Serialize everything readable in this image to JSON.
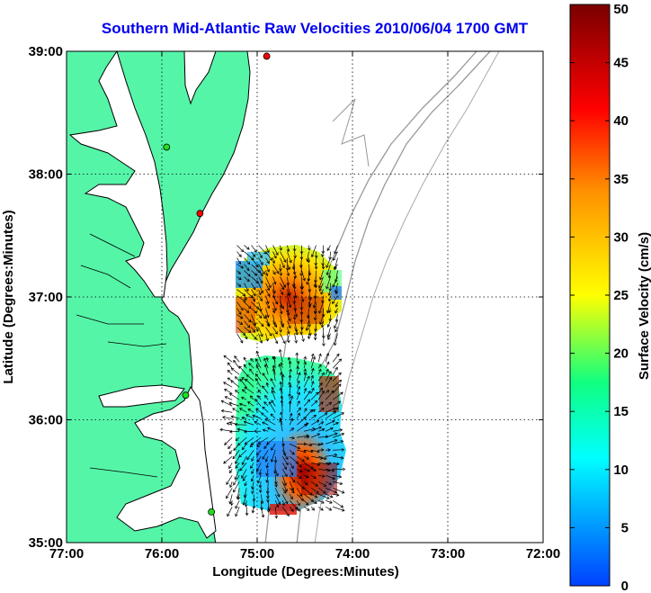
{
  "chart_data": {
    "type": "heatmap",
    "title": "Southern Mid-Atlantic Raw Velocities 2010/06/04 1700 GMT",
    "xlabel": "Longitude (Degrees:Minutes)",
    "ylabel": "Latitude (Degrees:Minutes)",
    "xlim": [
      -77,
      -72
    ],
    "ylim": [
      35,
      39
    ],
    "x_ticks": [
      {
        "value": -77,
        "label": "77:00"
      },
      {
        "value": -76,
        "label": "76:00"
      },
      {
        "value": -75,
        "label": "75:00"
      },
      {
        "value": -74,
        "label": "74:00"
      },
      {
        "value": -73,
        "label": "73:00"
      },
      {
        "value": -72,
        "label": "72:00"
      }
    ],
    "y_ticks": [
      {
        "value": 35,
        "label": "35:00"
      },
      {
        "value": 36,
        "label": "36:00"
      },
      {
        "value": 37,
        "label": "37:00"
      },
      {
        "value": 38,
        "label": "38:00"
      },
      {
        "value": 39,
        "label": "39:00"
      }
    ],
    "grid": true,
    "colorbar": {
      "label": "Surface Velocity (cm/s)",
      "min": 0,
      "max": 50,
      "ticks": [
        0,
        5,
        10,
        15,
        20,
        25,
        30,
        35,
        40,
        45,
        50
      ]
    },
    "stations": [
      {
        "lon": -74.9,
        "lat": 38.96,
        "color": "#ff0000"
      },
      {
        "lon": -75.95,
        "lat": 38.22,
        "color": "#22dd22"
      },
      {
        "lon": -75.6,
        "lat": 37.68,
        "color": "#ff0000"
      },
      {
        "lon": -75.75,
        "lat": 36.2,
        "color": "#22dd22"
      },
      {
        "lon": -75.48,
        "lat": 35.25,
        "color": "#22dd22"
      }
    ],
    "velocity_fields": [
      {
        "region": "northern",
        "lon_range": [
          -75.25,
          -74.15
        ],
        "lat_range": [
          36.7,
          37.45
        ]
      },
      {
        "region": "southern",
        "lon_range": [
          -75.3,
          -74.15
        ],
        "lat_range": [
          35.25,
          36.5
        ]
      }
    ]
  },
  "colors": {
    "land": "#55f5a8",
    "coast": "#000000",
    "bathymetry": "#999999",
    "title": "#0000ee"
  }
}
